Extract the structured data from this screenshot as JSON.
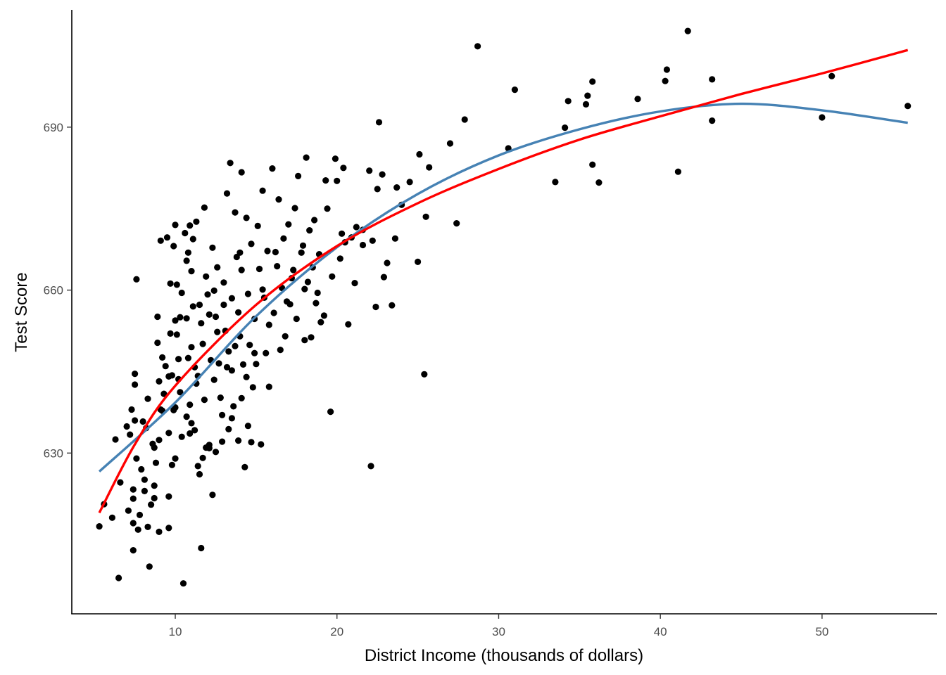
{
  "chart_data": {
    "type": "scatter",
    "title": "",
    "xlabel": "District Income (thousands of dollars)",
    "ylabel": "Test Score",
    "xlim": [
      3.6,
      57.1
    ],
    "ylim": [
      600.4,
      711.6
    ],
    "x_ticks": [
      10,
      20,
      30,
      40,
      50
    ],
    "y_ticks": [
      630,
      660,
      690
    ],
    "grid": false,
    "legend": "none",
    "colors": {
      "points": "#000000",
      "quadratic_fit": "#4682B4",
      "log_fit": "#FF0000",
      "axis": "#000000",
      "tick_label": "#4d4d4d"
    },
    "series": [
      {
        "type": "scatter",
        "points": [
          [
            5.3,
            616.5
          ],
          [
            5.6,
            620.6
          ],
          [
            6.1,
            618.1
          ],
          [
            6.5,
            607.0
          ],
          [
            6.6,
            624.6
          ],
          [
            7.0,
            634.9
          ],
          [
            7.1,
            619.4
          ],
          [
            7.2,
            633.4
          ],
          [
            7.3,
            638.0
          ],
          [
            7.4,
            623.3
          ],
          [
            7.4,
            621.6
          ],
          [
            7.4,
            617.1
          ],
          [
            7.4,
            612.1
          ],
          [
            7.5,
            644.6
          ],
          [
            7.5,
            642.6
          ],
          [
            7.5,
            636.0
          ],
          [
            7.6,
            662.0
          ],
          [
            7.6,
            629.0
          ],
          [
            7.7,
            615.9
          ],
          [
            7.8,
            618.6
          ],
          [
            8.0,
            635.8
          ],
          [
            8.1,
            625.1
          ],
          [
            8.1,
            623.0
          ],
          [
            8.2,
            634.6
          ],
          [
            8.3,
            640.0
          ],
          [
            8.3,
            616.4
          ],
          [
            8.4,
            609.1
          ],
          [
            8.5,
            620.5
          ],
          [
            8.7,
            631.0
          ],
          [
            8.7,
            624.0
          ],
          [
            8.7,
            621.7
          ],
          [
            8.9,
            655.1
          ],
          [
            8.9,
            650.3
          ],
          [
            9.0,
            643.2
          ],
          [
            9.0,
            632.4
          ],
          [
            9.0,
            615.5
          ],
          [
            9.1,
            669.1
          ],
          [
            9.1,
            638.0
          ],
          [
            9.2,
            647.6
          ],
          [
            9.3,
            640.9
          ],
          [
            9.5,
            669.7
          ],
          [
            9.6,
            644.1
          ],
          [
            9.6,
            633.7
          ],
          [
            9.6,
            622.0
          ],
          [
            9.6,
            616.2
          ],
          [
            9.7,
            661.2
          ],
          [
            9.7,
            652.0
          ],
          [
            9.8,
            644.3
          ],
          [
            9.9,
            668.1
          ],
          [
            9.9,
            637.9
          ],
          [
            10.0,
            672.0
          ],
          [
            10.0,
            654.4
          ],
          [
            10.0,
            638.4
          ],
          [
            10.0,
            629.0
          ],
          [
            10.1,
            661.0
          ],
          [
            10.1,
            651.8
          ],
          [
            10.2,
            647.3
          ],
          [
            10.2,
            643.6
          ],
          [
            10.3,
            655.0
          ],
          [
            10.3,
            641.2
          ],
          [
            10.4,
            633.0
          ],
          [
            10.5,
            606.0
          ],
          [
            10.6,
            670.5
          ],
          [
            10.7,
            665.4
          ],
          [
            10.7,
            654.8
          ],
          [
            10.7,
            636.7
          ],
          [
            10.8,
            666.9
          ],
          [
            10.8,
            647.5
          ],
          [
            10.9,
            671.9
          ],
          [
            10.9,
            638.9
          ],
          [
            11.0,
            663.5
          ],
          [
            11.0,
            649.5
          ],
          [
            11.0,
            635.5
          ],
          [
            11.1,
            669.4
          ],
          [
            11.2,
            645.8
          ],
          [
            11.2,
            634.2
          ],
          [
            11.3,
            642.8
          ],
          [
            11.3,
            672.6
          ],
          [
            11.4,
            627.6
          ],
          [
            11.4,
            644.2
          ],
          [
            11.5,
            657.3
          ],
          [
            11.6,
            612.5
          ],
          [
            11.6,
            653.9
          ],
          [
            11.7,
            629.1
          ],
          [
            11.8,
            675.2
          ],
          [
            11.8,
            639.8
          ],
          [
            11.9,
            662.5
          ],
          [
            11.9,
            631.0
          ],
          [
            12.0,
            659.2
          ],
          [
            12.1,
            631.5
          ],
          [
            12.2,
            647.1
          ],
          [
            12.3,
            622.3
          ],
          [
            12.3,
            667.8
          ],
          [
            12.4,
            643.5
          ],
          [
            12.5,
            630.2
          ],
          [
            12.5,
            655.1
          ],
          [
            12.6,
            652.3
          ],
          [
            12.7,
            646.5
          ],
          [
            12.8,
            640.2
          ],
          [
            12.9,
            632.1
          ],
          [
            13.0,
            661.4
          ],
          [
            13.1,
            652.5
          ],
          [
            13.2,
            677.8
          ],
          [
            13.3,
            634.4
          ],
          [
            13.3,
            648.7
          ],
          [
            13.4,
            683.4
          ],
          [
            13.5,
            658.5
          ],
          [
            13.5,
            645.2
          ],
          [
            13.6,
            638.6
          ],
          [
            13.7,
            674.3
          ],
          [
            13.8,
            666.1
          ],
          [
            13.9,
            632.3
          ],
          [
            13.9,
            655.9
          ],
          [
            14.0,
            651.5
          ],
          [
            14.1,
            681.7
          ],
          [
            14.1,
            663.7
          ],
          [
            14.1,
            640.1
          ],
          [
            14.2,
            646.3
          ],
          [
            14.3,
            627.4
          ],
          [
            14.4,
            673.3
          ],
          [
            14.5,
            659.3
          ],
          [
            14.5,
            635.0
          ],
          [
            14.6,
            649.9
          ],
          [
            14.7,
            668.5
          ],
          [
            14.8,
            642.1
          ],
          [
            14.9,
            654.7
          ],
          [
            15.0,
            646.4
          ],
          [
            15.1,
            671.8
          ],
          [
            15.2,
            663.9
          ],
          [
            15.3,
            631.6
          ],
          [
            15.4,
            678.3
          ],
          [
            15.5,
            658.6
          ],
          [
            15.6,
            648.4
          ],
          [
            15.7,
            667.2
          ],
          [
            15.8,
            642.2
          ],
          [
            16.0,
            682.4
          ],
          [
            16.1,
            655.8
          ],
          [
            16.3,
            664.4
          ],
          [
            16.4,
            676.7
          ],
          [
            16.5,
            649.0
          ],
          [
            16.7,
            669.5
          ],
          [
            16.9,
            657.9
          ],
          [
            17.0,
            672.1
          ],
          [
            17.2,
            662.2
          ],
          [
            17.4,
            675.1
          ],
          [
            17.5,
            654.7
          ],
          [
            17.6,
            681.0
          ],
          [
            17.8,
            666.9
          ],
          [
            18.0,
            660.2
          ],
          [
            18.1,
            684.4
          ],
          [
            18.3,
            671.0
          ],
          [
            18.4,
            651.3
          ],
          [
            18.5,
            664.2
          ],
          [
            18.6,
            672.9
          ],
          [
            18.7,
            657.6
          ],
          [
            18.9,
            666.6
          ],
          [
            19.0,
            654.1
          ],
          [
            19.3,
            680.2
          ],
          [
            19.6,
            637.6
          ],
          [
            19.7,
            662.5
          ],
          [
            19.9,
            684.2
          ],
          [
            20.0,
            680.1
          ],
          [
            20.2,
            665.8
          ],
          [
            20.4,
            682.5
          ],
          [
            20.5,
            668.8
          ],
          [
            20.7,
            653.7
          ],
          [
            20.9,
            669.7
          ],
          [
            21.1,
            661.3
          ],
          [
            21.2,
            671.6
          ],
          [
            21.6,
            668.3
          ],
          [
            22.0,
            682.0
          ],
          [
            22.1,
            627.6
          ],
          [
            22.2,
            669.1
          ],
          [
            22.4,
            656.9
          ],
          [
            22.5,
            678.6
          ],
          [
            22.6,
            690.9
          ],
          [
            22.8,
            681.3
          ],
          [
            22.9,
            662.4
          ],
          [
            23.1,
            665.0
          ],
          [
            23.4,
            657.2
          ],
          [
            23.6,
            669.5
          ],
          [
            23.7,
            678.9
          ],
          [
            24.0,
            675.7
          ],
          [
            24.5,
            679.9
          ],
          [
            25.0,
            665.2
          ],
          [
            25.1,
            685.0
          ],
          [
            25.4,
            644.5
          ],
          [
            25.5,
            673.5
          ],
          [
            25.7,
            682.6
          ],
          [
            27.0,
            687.0
          ],
          [
            27.4,
            672.3
          ],
          [
            27.9,
            691.4
          ],
          [
            28.7,
            704.9
          ],
          [
            30.6,
            686.1
          ],
          [
            31.0,
            696.9
          ],
          [
            33.5,
            679.9
          ],
          [
            34.1,
            689.9
          ],
          [
            34.3,
            694.8
          ],
          [
            35.4,
            694.2
          ],
          [
            35.5,
            695.8
          ],
          [
            35.8,
            698.4
          ],
          [
            35.8,
            683.1
          ],
          [
            36.2,
            679.8
          ],
          [
            38.6,
            695.2
          ],
          [
            40.3,
            698.5
          ],
          [
            40.4,
            700.6
          ],
          [
            41.1,
            681.8
          ],
          [
            41.7,
            707.7
          ],
          [
            43.2,
            691.2
          ],
          [
            43.2,
            698.8
          ],
          [
            50.0,
            691.8
          ],
          [
            50.6,
            699.4
          ],
          [
            55.3,
            693.9
          ],
          [
            6.3,
            632.5
          ],
          [
            7.9,
            627.0
          ],
          [
            8.6,
            631.7
          ],
          [
            9.4,
            646.0
          ],
          [
            9.8,
            627.8
          ],
          [
            10.4,
            659.5
          ],
          [
            11.1,
            657.0
          ],
          [
            11.7,
            650.1
          ],
          [
            12.1,
            655.5
          ],
          [
            12.6,
            664.2
          ],
          [
            13.2,
            645.8
          ],
          [
            13.7,
            649.7
          ],
          [
            14.4,
            644.0
          ],
          [
            14.9,
            648.4
          ],
          [
            15.4,
            660.1
          ],
          [
            16.2,
            667.0
          ],
          [
            16.8,
            651.5
          ],
          [
            17.3,
            663.7
          ],
          [
            17.9,
            668.2
          ],
          [
            18.2,
            661.5
          ],
          [
            18.8,
            659.5
          ],
          [
            19.4,
            675.0
          ],
          [
            20.3,
            670.4
          ],
          [
            21.6,
            671.1
          ],
          [
            12.9,
            637.0
          ],
          [
            13.5,
            636.4
          ],
          [
            11.5,
            626.1
          ],
          [
            12.1,
            630.9
          ],
          [
            14.7,
            632.0
          ],
          [
            10.9,
            633.6
          ],
          [
            9.2,
            637.8
          ],
          [
            8.8,
            628.2
          ],
          [
            15.8,
            653.6
          ],
          [
            16.6,
            660.4
          ],
          [
            17.1,
            657.4
          ],
          [
            18.0,
            650.8
          ],
          [
            19.2,
            655.3
          ],
          [
            14.0,
            666.9
          ],
          [
            13.0,
            657.3
          ],
          [
            12.4,
            659.9
          ]
        ]
      },
      {
        "type": "line",
        "curve": [
          [
            5.3,
            626.6
          ],
          [
            10,
            639.3
          ],
          [
            15,
            655.2
          ],
          [
            20,
            667.9
          ],
          [
            25,
            677.7
          ],
          [
            30,
            684.8
          ],
          [
            35,
            689.6
          ],
          [
            40,
            692.9
          ],
          [
            45,
            694.3
          ],
          [
            50,
            693.1
          ],
          [
            55.3,
            690.8
          ]
        ]
      },
      {
        "type": "line",
        "curve": [
          [
            5.3,
            619.0
          ],
          [
            7.5,
            631.6
          ],
          [
            10,
            642.4
          ],
          [
            15,
            657.3
          ],
          [
            20,
            668.1
          ],
          [
            25,
            676.0
          ],
          [
            30,
            682.3
          ],
          [
            35,
            687.7
          ],
          [
            40,
            692.0
          ],
          [
            45,
            696.1
          ],
          [
            50,
            699.9
          ],
          [
            55.3,
            704.2
          ]
        ]
      }
    ]
  }
}
